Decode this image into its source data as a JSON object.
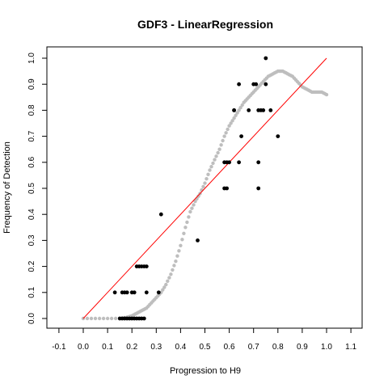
{
  "chart_data": {
    "type": "scatter",
    "title": "GDF3 - LinearRegression",
    "xlabel": "Progression to H9",
    "ylabel": "Frequency of Detection",
    "xlim": [
      -0.1,
      1.1
    ],
    "ylim": [
      0.0,
      1.0
    ],
    "xticks": [
      "-0.1",
      "0.0",
      "0.1",
      "0.2",
      "0.3",
      "0.4",
      "0.5",
      "0.6",
      "0.7",
      "0.8",
      "0.9",
      "1.0",
      "1.1"
    ],
    "yticks": [
      "0.0",
      "0.1",
      "0.2",
      "0.3",
      "0.4",
      "0.5",
      "0.6",
      "0.7",
      "0.8",
      "0.9",
      "1.0"
    ],
    "grid": false,
    "colors": {
      "observed": "#000000",
      "smoothed": "#bebebe",
      "reference": "#ff0000"
    },
    "series": [
      {
        "kind": "points",
        "x": [
          0.13,
          0.16,
          0.17,
          0.18,
          0.2,
          0.21,
          0.22,
          0.23,
          0.24,
          0.25,
          0.26,
          0.15,
          0.16,
          0.17,
          0.18,
          0.19,
          0.2,
          0.21,
          0.22,
          0.23,
          0.24,
          0.25,
          0.26,
          0.31,
          0.32,
          0.47,
          0.58,
          0.59,
          0.6,
          0.58,
          0.59,
          0.62,
          0.62,
          0.64,
          0.64,
          0.65,
          0.68,
          0.7,
          0.71,
          0.72,
          0.72,
          0.72,
          0.73,
          0.74,
          0.75,
          0.75,
          0.77,
          0.8
        ],
        "y": [
          0.1,
          0.1,
          0.1,
          0.1,
          0.1,
          0.1,
          0.2,
          0.2,
          0.2,
          0.2,
          0.2,
          0.0,
          0.0,
          0.0,
          0.0,
          0.0,
          0.0,
          0.0,
          0.0,
          0.0,
          0.0,
          0.0,
          0.1,
          0.1,
          0.4,
          0.3,
          0.6,
          0.6,
          0.6,
          0.5,
          0.5,
          0.8,
          0.8,
          0.9,
          0.6,
          0.7,
          0.8,
          0.9,
          0.9,
          0.6,
          0.5,
          0.8,
          0.8,
          0.8,
          1.0,
          0.9,
          0.8,
          0.7
        ]
      },
      {
        "kind": "smoothed",
        "x": [
          0.0,
          0.05,
          0.1,
          0.15,
          0.18,
          0.2,
          0.22,
          0.24,
          0.26,
          0.28,
          0.3,
          0.32,
          0.34,
          0.36,
          0.38,
          0.4,
          0.42,
          0.44,
          0.46,
          0.48,
          0.5,
          0.52,
          0.54,
          0.56,
          0.58,
          0.6,
          0.62,
          0.64,
          0.66,
          0.68,
          0.7,
          0.72,
          0.74,
          0.76,
          0.78,
          0.8,
          0.82,
          0.84,
          0.86,
          0.88,
          0.9,
          0.92,
          0.94,
          0.96,
          0.98,
          1.0
        ],
        "y": [
          0.0,
          0.0,
          0.0,
          0.0,
          0.005,
          0.01,
          0.02,
          0.03,
          0.04,
          0.06,
          0.08,
          0.1,
          0.13,
          0.17,
          0.22,
          0.28,
          0.35,
          0.41,
          0.45,
          0.48,
          0.52,
          0.57,
          0.61,
          0.65,
          0.7,
          0.74,
          0.77,
          0.8,
          0.83,
          0.85,
          0.87,
          0.89,
          0.91,
          0.93,
          0.94,
          0.95,
          0.95,
          0.94,
          0.93,
          0.91,
          0.89,
          0.88,
          0.87,
          0.87,
          0.87,
          0.86
        ]
      },
      {
        "kind": "reference-line",
        "x": [
          0.0,
          1.0
        ],
        "y": [
          0.0,
          1.0
        ]
      }
    ]
  }
}
